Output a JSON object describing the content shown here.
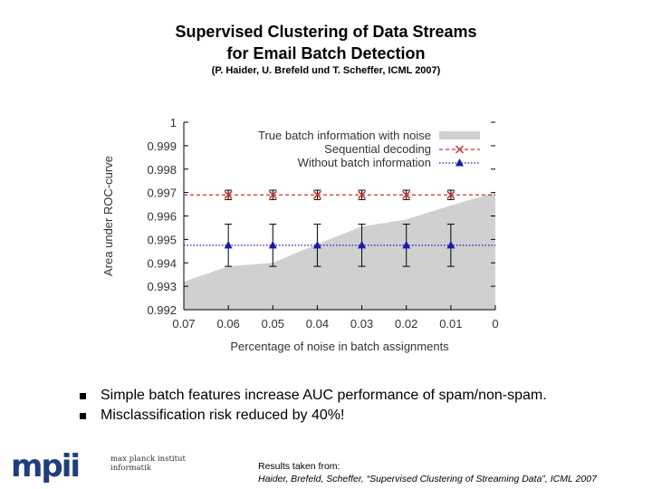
{
  "slide": {
    "title_line1": "Supervised Clustering of Data Streams",
    "title_line2": "for Email Batch Detection",
    "subtitle": "(P. Haider, U. Brefeld und T. Scheffer, ICML 2007)",
    "bullets": [
      "Simple batch features increase AUC performance of spam/non-spam.",
      "Misclassification risk reduced by 40%!"
    ],
    "logo": {
      "letters": "mpii",
      "text_line1": "max planck institut",
      "text_line2": "informatik"
    },
    "reference": {
      "line1": "Results taken from:",
      "line2": "Haider, Brefeld, Scheffer, “Supervised Clustering of Streaming Data”, ICML 2007"
    }
  },
  "chart_data": {
    "type": "line",
    "title": "",
    "xlabel": "Percentage of noise in batch assignments",
    "ylabel": "Area under ROC-curve",
    "x_ticks": [
      "0.07",
      "0.06",
      "0.05",
      "0.04",
      "0.03",
      "0.02",
      "0.01",
      "0"
    ],
    "x_reversed": true,
    "xlim": [
      0.07,
      0.0
    ],
    "y_ticks": [
      "0.992",
      "0.993",
      "0.994",
      "0.995",
      "0.996",
      "0.997",
      "0.998",
      "0.999",
      "1"
    ],
    "ylim": [
      0.992,
      1.0
    ],
    "legend_position": "top-right",
    "series": [
      {
        "name": "True batch information with noise",
        "style": "area",
        "color": "#d0d0d0",
        "x": [
          0.07,
          0.06,
          0.05,
          0.04,
          0.03,
          0.02,
          0.01,
          0.0
        ],
        "values": [
          0.9932,
          0.99385,
          0.994,
          0.9948,
          0.99555,
          0.99585,
          0.99645,
          0.997
        ]
      },
      {
        "name": "Sequential decoding",
        "style": "dashed-line",
        "color": "#cc3333",
        "marker": "x",
        "x": [
          0.06,
          0.05,
          0.04,
          0.03,
          0.02,
          0.01
        ],
        "values": [
          0.9969,
          0.9969,
          0.9969,
          0.9969,
          0.9969,
          0.9969
        ],
        "error": [
          0.0002,
          0.0002,
          0.0002,
          0.0002,
          0.0002,
          0.0002
        ]
      },
      {
        "name": "Without batch information",
        "style": "dotted-line",
        "color": "#1a1aaa",
        "marker": "triangle",
        "x": [
          0.06,
          0.05,
          0.04,
          0.03,
          0.02,
          0.01
        ],
        "values": [
          0.99475,
          0.99475,
          0.99475,
          0.99475,
          0.99475,
          0.99475
        ],
        "error": [
          0.0009,
          0.0009,
          0.0009,
          0.0009,
          0.0009,
          0.0009
        ]
      }
    ]
  }
}
